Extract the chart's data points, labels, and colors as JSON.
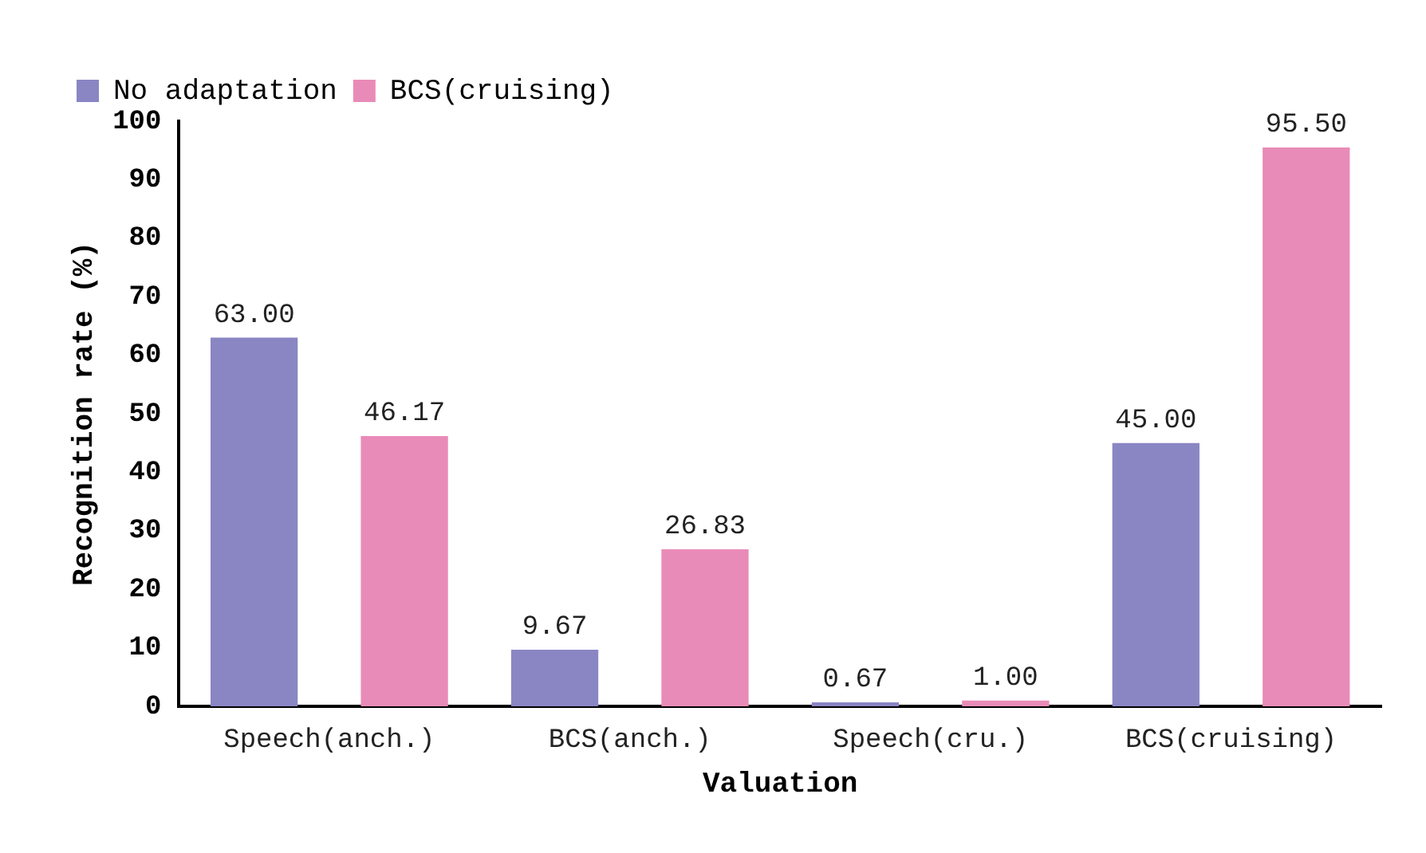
{
  "chart_data": {
    "type": "bar",
    "xlabel": "Valuation",
    "ylabel": "Recognition rate (%)",
    "categories": [
      "Speech(anch.)",
      "BCS(anch.)",
      "Speech(cru.)",
      "BCS(cruising)"
    ],
    "series": [
      {
        "name": "No adaptation",
        "color": "#8a86c4",
        "values": [
          63.0,
          9.67,
          0.67,
          45.0
        ],
        "value_labels": [
          "63.00",
          "9.67",
          "0.67",
          "45.00"
        ]
      },
      {
        "name": "BCS(cruising)",
        "color": "#e98bb8",
        "values": [
          46.17,
          26.83,
          1.0,
          95.5
        ],
        "value_labels": [
          "46.17",
          "26.83",
          "1.00",
          "95.50"
        ]
      }
    ],
    "ylim": [
      0,
      100
    ],
    "yticks": [
      0,
      10,
      20,
      30,
      40,
      50,
      60,
      70,
      80,
      90,
      100
    ],
    "grid": false,
    "legend": "top"
  }
}
